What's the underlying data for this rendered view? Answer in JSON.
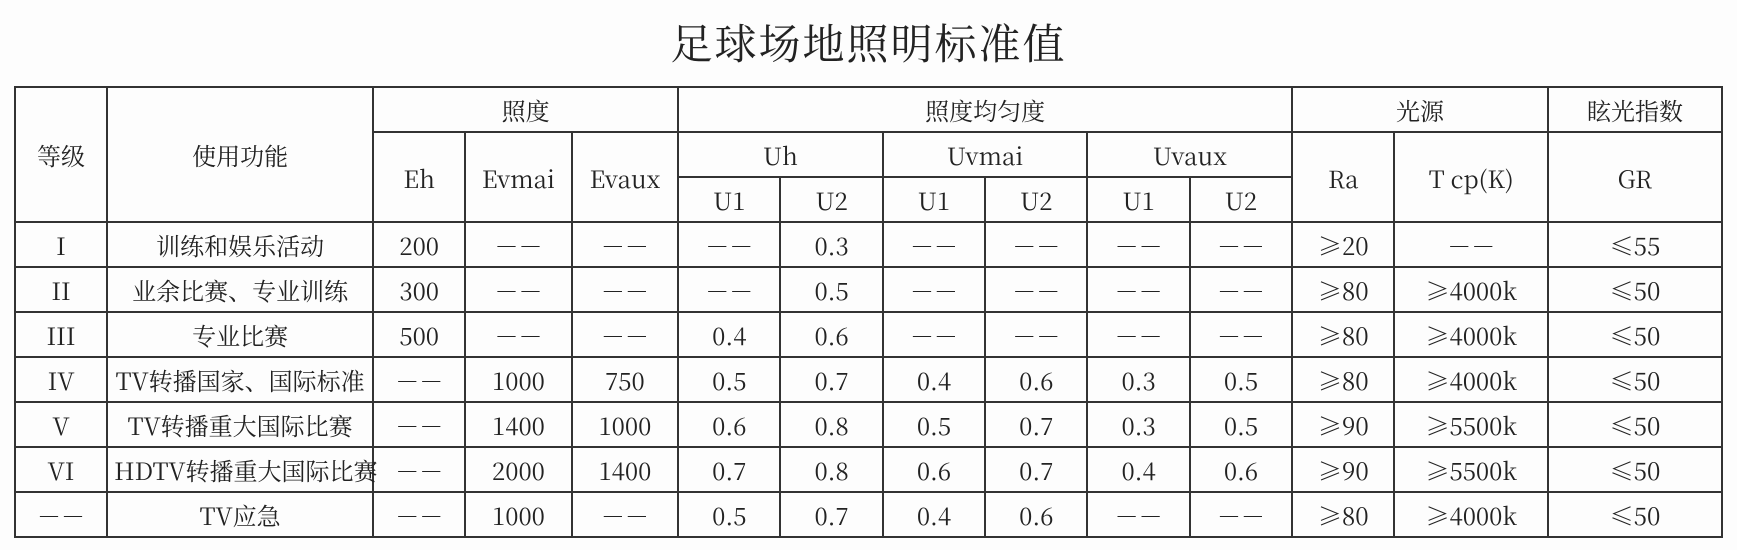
{
  "title": "足球场地照明标准值",
  "headers": {
    "grade": "等级",
    "function": "使用功能",
    "illuminance": "照度",
    "uniformity": "照度均匀度",
    "lightsource": "光源",
    "glare": "眩光指数",
    "eh": "Eh",
    "evmai": "Evmai",
    "evaux": "Evaux",
    "uh": "Uh",
    "uvmai": "Uvmai",
    "uvaux": "Uvaux",
    "u1": "U1",
    "u2": "U2",
    "ra": "Ra",
    "tcp": "T cp(K)",
    "gr": "GR"
  },
  "dash": "－－",
  "rows": [
    {
      "grade": "I",
      "func": "训练和娱乐活动",
      "eh": "200",
      "evmai": "－－",
      "evaux": "－－",
      "uh_u1": "－－",
      "uh_u2": "0.3",
      "uvmai_u1": "－－",
      "uvmai_u2": "－－",
      "uvaux_u1": "－－",
      "uvaux_u2": "－－",
      "ra": "≥20",
      "tcp": "－－",
      "gr": "≤55"
    },
    {
      "grade": "II",
      "func": "业余比赛、专业训练",
      "eh": "300",
      "evmai": "－－",
      "evaux": "－－",
      "uh_u1": "－－",
      "uh_u2": "0.5",
      "uvmai_u1": "－－",
      "uvmai_u2": "－－",
      "uvaux_u1": "－－",
      "uvaux_u2": "－－",
      "ra": "≥80",
      "tcp": "≥4000k",
      "gr": "≤50"
    },
    {
      "grade": "III",
      "func": "专业比赛",
      "eh": "500",
      "evmai": "－－",
      "evaux": "－－",
      "uh_u1": "0.4",
      "uh_u2": "0.6",
      "uvmai_u1": "－－",
      "uvmai_u2": "－－",
      "uvaux_u1": "－－",
      "uvaux_u2": "－－",
      "ra": "≥80",
      "tcp": "≥4000k",
      "gr": "≤50"
    },
    {
      "grade": "IV",
      "func": "TV转播国家、国际标准",
      "eh": "－－",
      "evmai": "1000",
      "evaux": "750",
      "uh_u1": "0.5",
      "uh_u2": "0.7",
      "uvmai_u1": "0.4",
      "uvmai_u2": "0.6",
      "uvaux_u1": "0.3",
      "uvaux_u2": "0.5",
      "ra": "≥80",
      "tcp": "≥4000k",
      "gr": "≤50"
    },
    {
      "grade": "V",
      "func": "TV转播重大国际比赛",
      "eh": "－－",
      "evmai": "1400",
      "evaux": "1000",
      "uh_u1": "0.6",
      "uh_u2": "0.8",
      "uvmai_u1": "0.5",
      "uvmai_u2": "0.7",
      "uvaux_u1": "0.3",
      "uvaux_u2": "0.5",
      "ra": "≥90",
      "tcp": "≥5500k",
      "gr": "≤50"
    },
    {
      "grade": "VI",
      "func": "HDTV转播重大国际比赛",
      "eh": "－－",
      "evmai": "2000",
      "evaux": "1400",
      "uh_u1": "0.7",
      "uh_u2": "0.8",
      "uvmai_u1": "0.6",
      "uvmai_u2": "0.7",
      "uvaux_u1": "0.4",
      "uvaux_u2": "0.6",
      "ra": "≥90",
      "tcp": "≥5500k",
      "gr": "≤50"
    },
    {
      "grade": "－－",
      "func": "TV应急",
      "eh": "－－",
      "evmai": "1000",
      "evaux": "－－",
      "uh_u1": "0.5",
      "uh_u2": "0.7",
      "uvmai_u1": "0.4",
      "uvmai_u2": "0.6",
      "uvaux_u1": "－－",
      "uvaux_u2": "－－",
      "ra": "≥80",
      "tcp": "≥4000k",
      "gr": "≤50"
    }
  ],
  "colwidths": {
    "grade": 90,
    "func": 260,
    "eh": 90,
    "evmai": 104,
    "evaux": 104,
    "uh_u1": 100,
    "uh_u2": 100,
    "uvmai_u1": 100,
    "uvmai_u2": 100,
    "uvaux_u1": 100,
    "uvaux_u2": 100,
    "ra": 100,
    "tcp": 150,
    "gr": 170
  }
}
